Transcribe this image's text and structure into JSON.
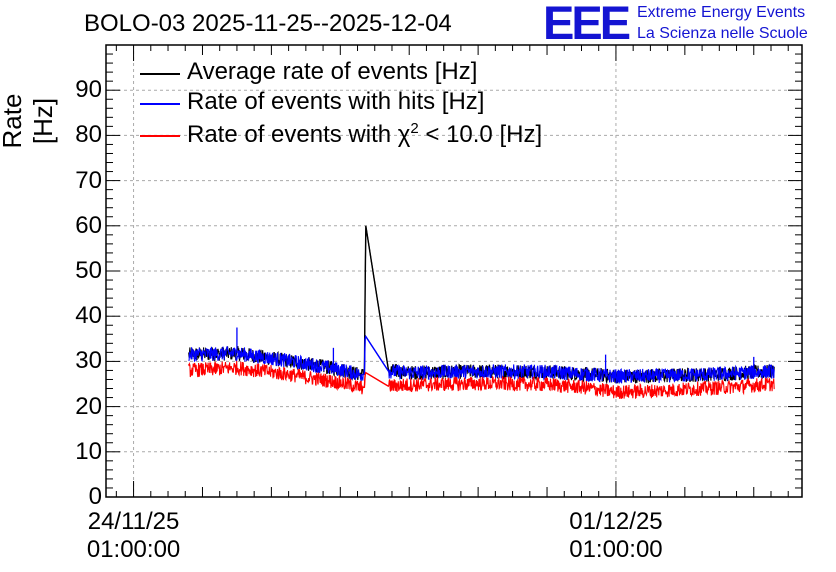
{
  "chart_data": {
    "type": "line",
    "title": "BOLO-03 2025-11-25--2025-12-04",
    "ylabel": "Rate [Hz]",
    "xlabel": "",
    "ylim": [
      0,
      100
    ],
    "yticks": [
      0,
      10,
      20,
      30,
      40,
      50,
      60,
      70,
      80,
      90
    ],
    "ytick_labels": [
      "0",
      "10",
      "20",
      "30",
      "40",
      "50",
      "60",
      "70",
      "80",
      "90"
    ],
    "xlim_days": [
      -0.4,
      9.7
    ],
    "xticks_days": [
      0,
      7
    ],
    "xtick_labels": [
      {
        "date": "24/11/25",
        "time": "01:00:00"
      },
      {
        "date": "01/12/25",
        "time": "01:00:00"
      }
    ],
    "grid": true,
    "legend_position": "top-left",
    "series": [
      {
        "name": "Average rate of events [Hz]",
        "color": "#000000",
        "x_days": [
          0.8,
          1.5,
          2.3,
          3.0,
          3.3,
          3.35,
          3.36,
          3.37,
          3.7,
          4.0,
          5.0,
          6.0,
          6.5,
          7.0,
          7.6,
          8.5,
          9.3
        ],
        "values": [
          31.5,
          31.8,
          30.0,
          28.2,
          27.0,
          27.2,
          45.0,
          60.0,
          28.0,
          27.5,
          27.8,
          27.7,
          27.2,
          26.7,
          26.8,
          27.2,
          27.8
        ]
      },
      {
        "name": "Rate of events with hits [Hz]",
        "color": "#0000ff",
        "x_days": [
          0.8,
          1.5,
          2.3,
          3.0,
          3.3,
          3.35,
          3.36,
          3.37,
          3.7,
          4.0,
          5.0,
          6.0,
          6.5,
          7.0,
          7.6,
          8.5,
          9.3
        ],
        "values": [
          31.5,
          31.8,
          30.0,
          28.2,
          27.0,
          27.2,
          35.0,
          35.5,
          27.8,
          27.5,
          27.8,
          27.7,
          27.2,
          26.7,
          26.8,
          27.2,
          27.8
        ],
        "spikes": [
          {
            "x_days": 1.5,
            "value": 37.5
          },
          {
            "x_days": 2.9,
            "value": 33.0
          },
          {
            "x_days": 6.85,
            "value": 31.5
          },
          {
            "x_days": 9.0,
            "value": 31.0
          }
        ]
      },
      {
        "name": "Rate of events with χ² < 10.0 [Hz]",
        "color": "#ff0000",
        "x_days": [
          0.8,
          1.5,
          2.3,
          3.0,
          3.3,
          3.35,
          3.36,
          3.37,
          3.7,
          4.0,
          5.0,
          6.0,
          6.5,
          7.0,
          7.6,
          8.5,
          9.3
        ],
        "values": [
          28.0,
          28.6,
          27.0,
          25.3,
          24.2,
          24.3,
          27.0,
          27.5,
          24.5,
          24.8,
          25.1,
          24.9,
          24.3,
          23.2,
          23.5,
          24.2,
          25.0
        ]
      }
    ]
  },
  "legend": {
    "avg_label": "Average rate of events [Hz]",
    "hits_label": "Rate of events with hits [Hz]",
    "chi2_prefix": "Rate of events with χ",
    "chi2_sup": "2",
    "chi2_suffix": " < 10.0 [Hz]"
  },
  "logo": {
    "mark": "EEE",
    "line1": "Extreme Energy Events",
    "line2": "La Scienza nelle Scuole",
    "color": "#1414d2"
  }
}
